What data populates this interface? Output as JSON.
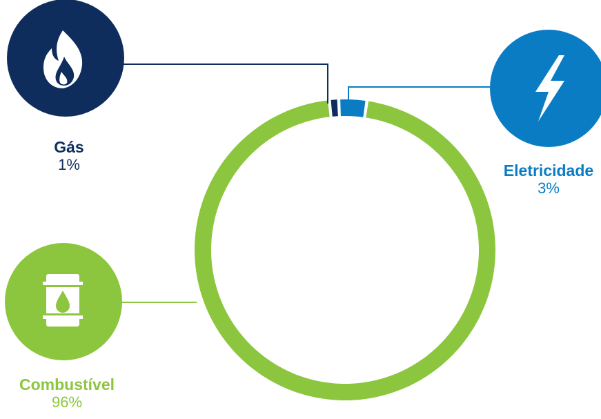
{
  "chart_data": {
    "type": "pie",
    "variant": "donut",
    "slices": [
      {
        "label": "Gás",
        "value_text": "1%",
        "value": 1,
        "color": "#0f2d5c",
        "icon": "flame-icon"
      },
      {
        "label": "Eletricidade",
        "value_text": "3%",
        "value": 3,
        "color": "#0a7cc4",
        "icon": "lightning-bolt-icon"
      },
      {
        "label": "Combustível",
        "value_text": "96%",
        "value": 96,
        "color": "#8cc63f",
        "icon": "oil-barrel-icon"
      }
    ],
    "start_angle_deg": -6,
    "legend": "callouts-outside"
  }
}
